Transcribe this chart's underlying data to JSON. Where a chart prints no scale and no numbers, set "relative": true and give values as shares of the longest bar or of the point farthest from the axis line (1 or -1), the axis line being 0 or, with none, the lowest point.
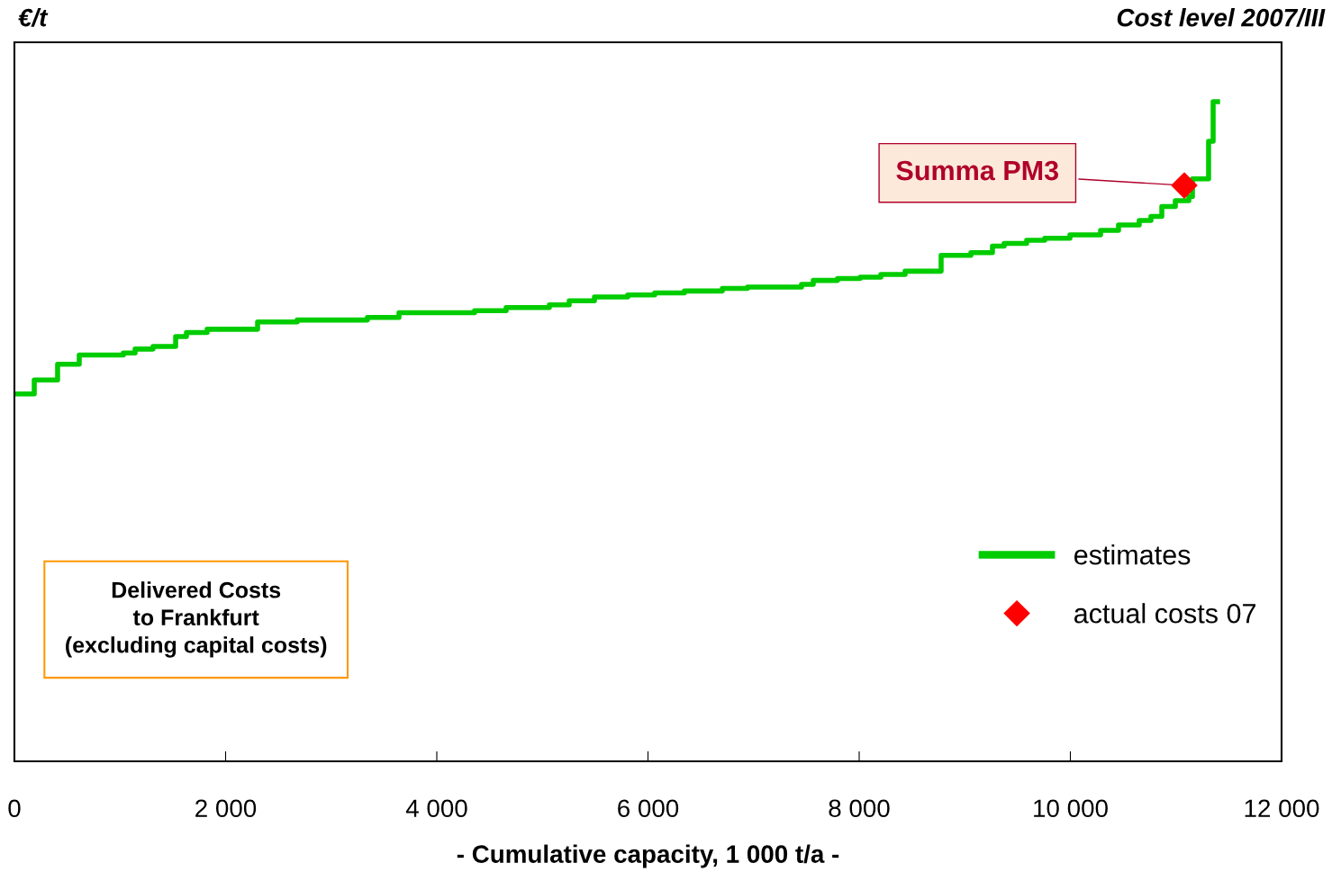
{
  "chart_data": {
    "type": "step",
    "relative": true,
    "ylabel": "€/t",
    "subtitle": "Cost level 2007/III",
    "xlabel": "- Cumulative capacity, 1 000 t/a -",
    "xlim": [
      0,
      12000
    ],
    "xticks": [
      0,
      {
        "value": 2000,
        "label": "2 000"
      },
      {
        "value": 4000,
        "label": "4 000"
      },
      {
        "value": 6000,
        "label": "6 000"
      },
      {
        "value": 8000,
        "label": "8 000"
      },
      {
        "value": 10000,
        "label": "10 000"
      },
      {
        "value": 12000,
        "label": "12 000"
      }
    ],
    "legend": "bottom right",
    "series": [
      {
        "name": "estimates",
        "type": "step",
        "color": "#00cc00",
        "marker": "none",
        "line_style": "solid",
        "x": [
          0,
          188,
          409,
          614,
          1032,
          1143,
          1313,
          1527,
          1629,
          1825,
          2303,
          2678,
          3343,
          3642,
          4358,
          4657,
          5066,
          5254,
          5493,
          5808,
          6064,
          6345,
          6704,
          6942,
          7454,
          7565,
          7795,
          8009,
          8205,
          8435,
          8776,
          9058,
          9262,
          9373,
          9586,
          9757,
          9996,
          10286,
          10456,
          10652,
          10763,
          10866,
          10994,
          11122,
          11156,
          11309,
          11352,
          11394
        ],
        "values": [
          0.557,
          0.578,
          0.602,
          0.616,
          0.619,
          0.625,
          0.629,
          0.644,
          0.65,
          0.655,
          0.666,
          0.669,
          0.673,
          0.68,
          0.683,
          0.688,
          0.692,
          0.698,
          0.704,
          0.707,
          0.71,
          0.713,
          0.717,
          0.719,
          0.723,
          0.729,
          0.732,
          0.734,
          0.738,
          0.743,
          0.767,
          0.771,
          0.781,
          0.785,
          0.79,
          0.793,
          0.798,
          0.805,
          0.813,
          0.82,
          0.826,
          0.841,
          0.85,
          0.856,
          0.883,
          0.94,
          1.0,
          1.0
        ]
      },
      {
        "name": "actual costs 07",
        "type": "scatter",
        "color": "#ff0000",
        "marker": "diamond",
        "x": [
          11079
        ],
        "values": [
          0.873
        ]
      }
    ],
    "annotations": [
      {
        "text": "Summa PM3",
        "x": 11079,
        "y": 0.873
      },
      "Delivered Costs\nto Frankfurt\n(excluding capital costs)"
    ]
  }
}
